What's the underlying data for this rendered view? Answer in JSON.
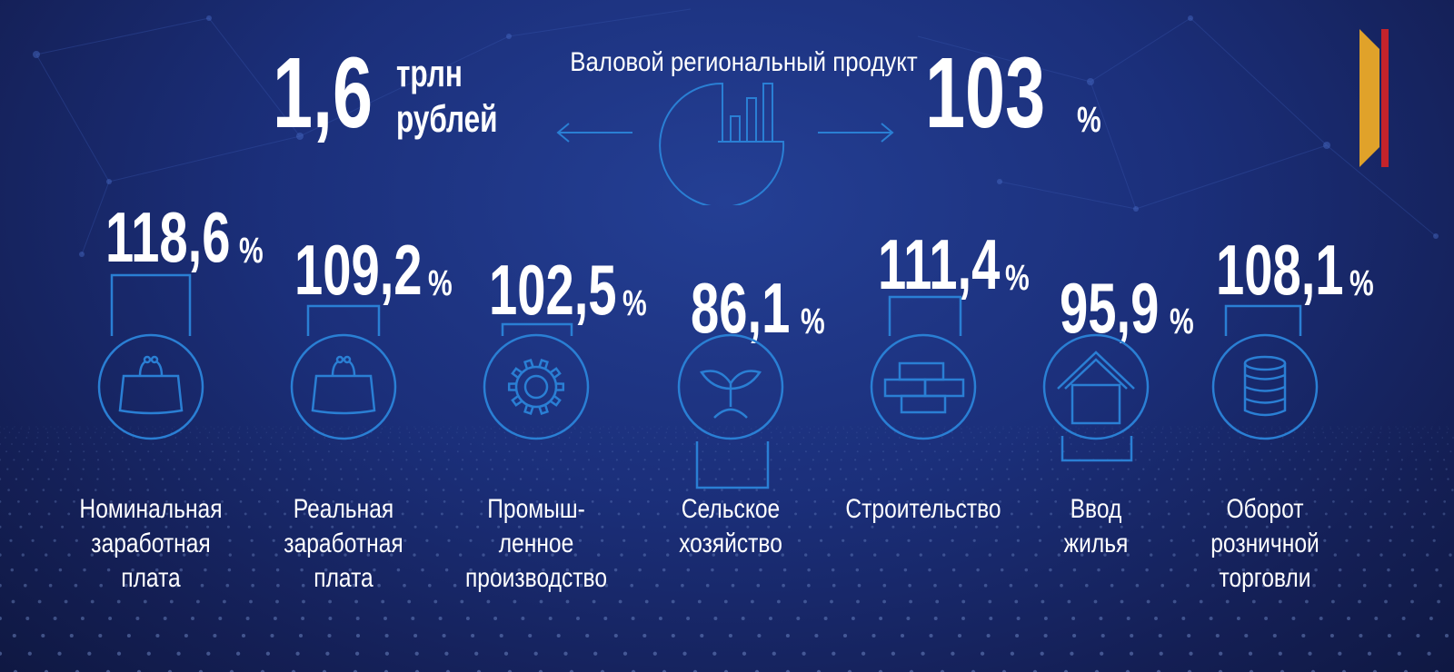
{
  "header": {
    "title": "Валовой региональный продукт",
    "left_value": "1,6",
    "left_unit_line1": "трлн",
    "left_unit_line2": "рублей",
    "right_value": "103",
    "right_unit": "%"
  },
  "colors": {
    "background": "#1b2f7a",
    "accent": "#2a7fd4",
    "text": "#ffffff",
    "brand_gold": "#e0a22a",
    "brand_red": "#c4232b"
  },
  "indicators": [
    {
      "value": "118,6",
      "unit": "%",
      "icon": "wallet-icon",
      "label": [
        "Номинальная",
        "заработная",
        "плата"
      ]
    },
    {
      "value": "109,2",
      "unit": "%",
      "icon": "wallet-icon",
      "label": [
        "Реальная",
        "заработная",
        "плата"
      ]
    },
    {
      "value": "102,5",
      "unit": "%",
      "icon": "gear-icon",
      "label": [
        "Промыш-",
        "ленное",
        "производство"
      ]
    },
    {
      "value": "86,1",
      "unit": "%",
      "icon": "sprout-icon",
      "label": [
        "Сельское",
        "хозяйство"
      ]
    },
    {
      "value": "111,4",
      "unit": "%",
      "icon": "bricks-icon",
      "label": [
        "Строительство"
      ]
    },
    {
      "value": "95,9",
      "unit": "%",
      "icon": "house-icon",
      "label": [
        "Ввод",
        "жилья"
      ]
    },
    {
      "value": "108,1",
      "unit": "%",
      "icon": "coins-icon",
      "label": [
        "Оборот",
        "розничной",
        "торговли"
      ]
    }
  ]
}
